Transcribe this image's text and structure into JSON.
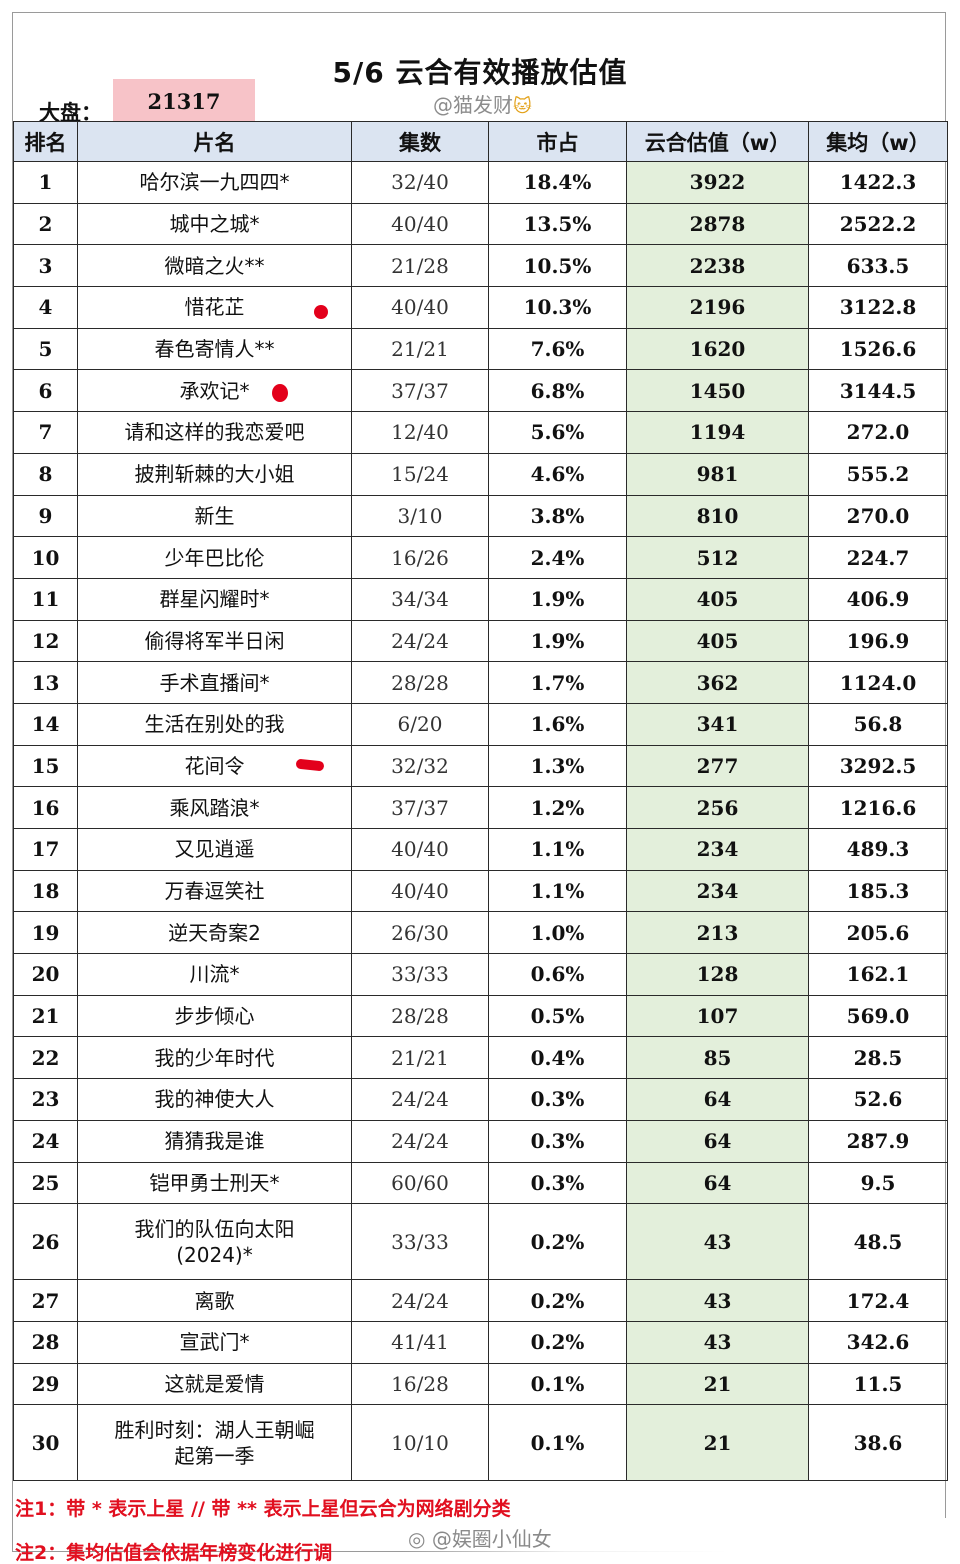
{
  "title": "5/6 云合有效播放估值",
  "market": {
    "label": "大盘：",
    "value": "21317"
  },
  "watermark_top": {
    "text": "@猫发财",
    "cat": "🐱"
  },
  "headers": [
    "排名",
    "片名",
    "集数",
    "市占",
    "云合估值（w）",
    "集均（w）"
  ],
  "rows": [
    {
      "rank": "1",
      "name": "哈尔滨一九四四*",
      "episodes": "32/40",
      "share": "18.4%",
      "estimate": "3922",
      "avg": "1422.3"
    },
    {
      "rank": "2",
      "name": "城中之城*",
      "episodes": "40/40",
      "share": "13.5%",
      "estimate": "2878",
      "avg": "2522.2"
    },
    {
      "rank": "3",
      "name": "微暗之火**",
      "episodes": "21/28",
      "share": "10.5%",
      "estimate": "2238",
      "avg": "633.5"
    },
    {
      "rank": "4",
      "name": "惜花芷",
      "episodes": "40/40",
      "share": "10.3%",
      "estimate": "2196",
      "avg": "3122.8"
    },
    {
      "rank": "5",
      "name": "春色寄情人**",
      "episodes": "21/21",
      "share": "7.6%",
      "estimate": "1620",
      "avg": "1526.6"
    },
    {
      "rank": "6",
      "name": "承欢记*",
      "episodes": "37/37",
      "share": "6.8%",
      "estimate": "1450",
      "avg": "3144.5"
    },
    {
      "rank": "7",
      "name": "请和这样的我恋爱吧",
      "episodes": "12/40",
      "share": "5.6%",
      "estimate": "1194",
      "avg": "272.0"
    },
    {
      "rank": "8",
      "name": "披荆斩棘的大小姐",
      "episodes": "15/24",
      "share": "4.6%",
      "estimate": "981",
      "avg": "555.2"
    },
    {
      "rank": "9",
      "name": "新生",
      "episodes": "3/10",
      "share": "3.8%",
      "estimate": "810",
      "avg": "270.0"
    },
    {
      "rank": "10",
      "name": "少年巴比伦",
      "episodes": "16/26",
      "share": "2.4%",
      "estimate": "512",
      "avg": "224.7"
    },
    {
      "rank": "11",
      "name": "群星闪耀时*",
      "episodes": "34/34",
      "share": "1.9%",
      "estimate": "405",
      "avg": "406.9"
    },
    {
      "rank": "12",
      "name": "偷得将军半日闲",
      "episodes": "24/24",
      "share": "1.9%",
      "estimate": "405",
      "avg": "196.9"
    },
    {
      "rank": "13",
      "name": "手术直播间*",
      "episodes": "28/28",
      "share": "1.7%",
      "estimate": "362",
      "avg": "1124.0"
    },
    {
      "rank": "14",
      "name": "生活在别处的我",
      "episodes": "6/20",
      "share": "1.6%",
      "estimate": "341",
      "avg": "56.8"
    },
    {
      "rank": "15",
      "name": "花间令",
      "episodes": "32/32",
      "share": "1.3%",
      "estimate": "277",
      "avg": "3292.5"
    },
    {
      "rank": "16",
      "name": "乘风踏浪*",
      "episodes": "37/37",
      "share": "1.2%",
      "estimate": "256",
      "avg": "1216.6"
    },
    {
      "rank": "17",
      "name": "又见逍遥",
      "episodes": "40/40",
      "share": "1.1%",
      "estimate": "234",
      "avg": "489.3"
    },
    {
      "rank": "18",
      "name": "万春逗笑社",
      "episodes": "40/40",
      "share": "1.1%",
      "estimate": "234",
      "avg": "185.3"
    },
    {
      "rank": "19",
      "name": "逆天奇案2",
      "episodes": "26/30",
      "share": "1.0%",
      "estimate": "213",
      "avg": "205.6"
    },
    {
      "rank": "20",
      "name": "川流*",
      "episodes": "33/33",
      "share": "0.6%",
      "estimate": "128",
      "avg": "162.1"
    },
    {
      "rank": "21",
      "name": "步步倾心",
      "episodes": "28/28",
      "share": "0.5%",
      "estimate": "107",
      "avg": "569.0"
    },
    {
      "rank": "22",
      "name": "我的少年时代",
      "episodes": "21/21",
      "share": "0.4%",
      "estimate": "85",
      "avg": "28.5"
    },
    {
      "rank": "23",
      "name": "我的神使大人",
      "episodes": "24/24",
      "share": "0.3%",
      "estimate": "64",
      "avg": "52.6"
    },
    {
      "rank": "24",
      "name": "猜猜我是谁",
      "episodes": "24/24",
      "share": "0.3%",
      "estimate": "64",
      "avg": "287.9"
    },
    {
      "rank": "25",
      "name": "铠甲勇士刑天*",
      "episodes": "60/60",
      "share": "0.3%",
      "estimate": "64",
      "avg": "9.5"
    },
    {
      "rank": "26",
      "name": "我们的队伍向太阳",
      "name2": "(2024)*",
      "episodes": "33/33",
      "share": "0.2%",
      "estimate": "43",
      "avg": "48.5"
    },
    {
      "rank": "27",
      "name": "离歌",
      "episodes": "24/24",
      "share": "0.2%",
      "estimate": "43",
      "avg": "172.4"
    },
    {
      "rank": "28",
      "name": "宣武门*",
      "episodes": "41/41",
      "share": "0.2%",
      "estimate": "43",
      "avg": "342.6"
    },
    {
      "rank": "29",
      "name": "这就是爱情",
      "episodes": "16/28",
      "share": "0.1%",
      "estimate": "21",
      "avg": "11.5"
    },
    {
      "rank": "30",
      "name": "胜利时刻：湖人王朝崛",
      "name2": "起第一季",
      "episodes": "10/10",
      "share": "0.1%",
      "estimate": "21",
      "avg": "38.6"
    }
  ],
  "notes": {
    "note1": "注1：带 * 表示上星 // 带 ** 表示上星但云合为网络剧分类",
    "note2": "注2：集均估值会依据年榜变化进行调"
  },
  "watermark_bottom": "@娱圈小仙女",
  "colors": {
    "header_bg": "#dbe4f1",
    "estimate_bg": "#e3efdb",
    "market_bg": "#f7c3c8",
    "note": "#e10f1f",
    "mark": "#e3001b"
  }
}
